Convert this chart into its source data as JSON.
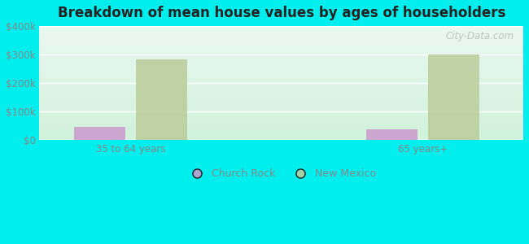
{
  "title": "Breakdown of mean house values by ages of householders",
  "categories": [
    "35 to 64 years",
    "65 years+"
  ],
  "church_rock_values": [
    47000,
    37000
  ],
  "new_mexico_values": [
    283000,
    300000
  ],
  "church_rock_color": "#cc99cc",
  "new_mexico_color": "#bbcc99",
  "ylim": [
    0,
    400000
  ],
  "yticks": [
    0,
    100000,
    200000,
    300000,
    400000
  ],
  "ytick_labels": [
    "$0",
    "$100k",
    "$200k",
    "$300k",
    "$400k"
  ],
  "background_color": "#00eeee",
  "bar_width": 0.28,
  "legend_church_rock": "Church Rock",
  "legend_new_mexico": "New Mexico",
  "watermark": "City-Data.com",
  "tick_color": "#888888",
  "tick_fontsize": 8.5,
  "title_fontsize": 12
}
